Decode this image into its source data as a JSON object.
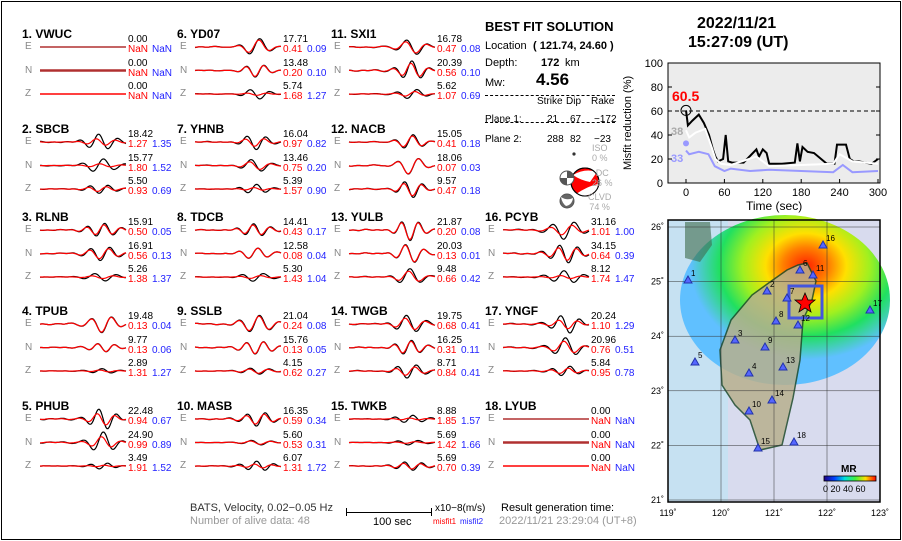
{
  "stations": [
    {
      "label": "1.  VWUC",
      "traces": [
        [
          "0.00",
          "NaN",
          "NaN"
        ],
        [
          "0.00",
          "NaN",
          "NaN"
        ],
        [
          "0.00",
          "NaN",
          "NaN"
        ]
      ],
      "flat": true
    },
    {
      "label": "2.  SBCB",
      "traces": [
        [
          "18.42",
          "1.27",
          "1.35"
        ],
        [
          "15.77",
          "1.80",
          "1.52"
        ],
        [
          "5.50",
          "0.93",
          "0.69"
        ]
      ]
    },
    {
      "label": "3.  RLNB",
      "traces": [
        [
          "15.91",
          "0.50",
          "0.05"
        ],
        [
          "16.91",
          "0.56",
          "0.13"
        ],
        [
          "5.26",
          "1.38",
          "1.37"
        ]
      ]
    },
    {
      "label": "4.  TPUB",
      "traces": [
        [
          "19.48",
          "0.13",
          "0.04"
        ],
        [
          "9.77",
          "0.13",
          "0.06"
        ],
        [
          "2.89",
          "1.31",
          "1.27"
        ]
      ]
    },
    {
      "label": "5.  PHUB",
      "traces": [
        [
          "22.48",
          "0.94",
          "0.67"
        ],
        [
          "24.90",
          "0.99",
          "0.89"
        ],
        [
          "3.49",
          "1.91",
          "1.52"
        ]
      ]
    },
    {
      "label": "6.  YD07",
      "traces": [
        [
          "17.71",
          "0.41",
          "0.09"
        ],
        [
          "13.48",
          "0.20",
          "0.10"
        ],
        [
          "5.74",
          "1.68",
          "1.27"
        ]
      ]
    },
    {
      "label": "7.  YHNB",
      "traces": [
        [
          "16.04",
          "0.97",
          "0.82"
        ],
        [
          "13.46",
          "0.75",
          "0.20"
        ],
        [
          "5.39",
          "1.57",
          "0.90"
        ]
      ]
    },
    {
      "label": "8.  TDCB",
      "traces": [
        [
          "14.41",
          "0.43",
          "0.17"
        ],
        [
          "12.58",
          "0.08",
          "0.04"
        ],
        [
          "5.30",
          "1.43",
          "1.04"
        ]
      ]
    },
    {
      "label": "9.  SSLB",
      "traces": [
        [
          "21.04",
          "0.24",
          "0.08"
        ],
        [
          "15.76",
          "0.13",
          "0.05"
        ],
        [
          "4.15",
          "0.62",
          "0.27"
        ]
      ]
    },
    {
      "label": "10. MASB",
      "traces": [
        [
          "16.35",
          "0.59",
          "0.34"
        ],
        [
          "5.60",
          "0.53",
          "0.31"
        ],
        [
          "6.07",
          "1.31",
          "1.72"
        ]
      ]
    },
    {
      "label": "11. SXI1",
      "traces": [
        [
          "16.78",
          "0.47",
          "0.08"
        ],
        [
          "20.39",
          "0.56",
          "0.10"
        ],
        [
          "5.62",
          "1.07",
          "0.69"
        ]
      ]
    },
    {
      "label": "12. NACB",
      "traces": [
        [
          "15.05",
          "0.41",
          "0.18"
        ],
        [
          "18.06",
          "0.07",
          "0.03"
        ],
        [
          "9.57",
          "0.47",
          "0.18"
        ]
      ]
    },
    {
      "label": "13. YULB",
      "traces": [
        [
          "21.87",
          "0.20",
          "0.08"
        ],
        [
          "20.03",
          "0.13",
          "0.01"
        ],
        [
          "9.48",
          "0.66",
          "0.42"
        ]
      ]
    },
    {
      "label": "14. TWGB",
      "traces": [
        [
          "19.75",
          "0.68",
          "0.41"
        ],
        [
          "16.25",
          "0.31",
          "0.11"
        ],
        [
          "8.71",
          "0.84",
          "0.41"
        ]
      ]
    },
    {
      "label": "15. TWKB",
      "traces": [
        [
          "8.88",
          "1.85",
          "1.57"
        ],
        [
          "5.69",
          "1.42",
          "1.66"
        ],
        [
          "5.69",
          "0.70",
          "0.39"
        ]
      ]
    },
    {
      "label": "16. PCYB",
      "traces": [
        [
          "31.16",
          "1.01",
          "1.00"
        ],
        [
          "34.15",
          "0.64",
          "0.39"
        ],
        [
          "8.12",
          "1.74",
          "1.47"
        ]
      ]
    },
    {
      "label": "17. YNGF",
      "traces": [
        [
          "20.24",
          "1.10",
          "1.29"
        ],
        [
          "20.96",
          "0.76",
          "0.51"
        ],
        [
          "5.84",
          "0.95",
          "0.78"
        ]
      ]
    },
    {
      "label": "18. LYUB",
      "traces": [
        [
          "0.00",
          "NaN",
          "NaN"
        ],
        [
          "0.00",
          "NaN",
          "NaN"
        ],
        [
          "0.00",
          "NaN",
          "NaN"
        ]
      ],
      "flat": true
    }
  ],
  "components": [
    "E",
    "N",
    "Z"
  ],
  "solution": {
    "title": "BEST FIT SOLUTION",
    "location_label": "Location",
    "location_value": "( 121.74,  24.60 )",
    "depth_label": "Depth:",
    "depth_value": "172",
    "depth_unit": "km",
    "mw_label": "Mw:",
    "mw_value": "4.56",
    "headers": [
      "Strike",
      "Dip",
      "Rake"
    ],
    "planes": [
      {
        "label": "Plane 1:",
        "values": [
          "21",
          "67",
          "−172"
        ]
      },
      {
        "label": "Plane 2:",
        "values": [
          "288",
          "82",
          "−23"
        ]
      }
    ],
    "iso_label": "ISO",
    "iso_value": "0  %",
    "dc_label": "DC",
    "dc_value": "26 %",
    "clvd_label": "CLVD",
    "clvd_value": "74 %"
  },
  "header": {
    "date": "2022/11/21",
    "time": "15:27:09  (UT)"
  },
  "chart_data": {
    "type": "line",
    "xlabel": "Time (sec)",
    "ylabel": "Misfit reduction (%)",
    "xlim": [
      -30,
      300
    ],
    "ylim": [
      0,
      100
    ],
    "xticks": [
      "0",
      "60",
      "120",
      "180",
      "240",
      "300"
    ],
    "yticks": [
      "0",
      "20",
      "40",
      "60",
      "80",
      "100"
    ],
    "best_value": "60.5",
    "white_label": "38",
    "blue_label": "33",
    "series": [
      {
        "name": "black",
        "color": "#000000",
        "x": [
          0,
          3,
          10,
          20,
          28,
          36,
          42,
          46,
          50,
          58,
          62,
          66,
          72,
          90,
          110,
          114,
          120,
          126,
          130,
          150,
          170,
          174,
          178,
          182,
          190,
          200,
          220,
          232,
          236,
          250,
          256,
          262,
          270,
          290,
          300
        ],
        "y": [
          60.5,
          48,
          52,
          57,
          50,
          40,
          28,
          22,
          18,
          20,
          40,
          18,
          17,
          17,
          28,
          22,
          28,
          25,
          16,
          16,
          17,
          33,
          18,
          30,
          26,
          25,
          16,
          16,
          32,
          32,
          20,
          18,
          18,
          16,
          20
        ]
      },
      {
        "name": "white",
        "color": "#ffffff",
        "x": [
          0,
          5,
          15,
          30,
          40,
          46,
          55,
          70,
          110,
          130,
          180,
          230,
          240,
          260,
          300
        ],
        "y": [
          44,
          38,
          42,
          45,
          30,
          20,
          16,
          15,
          22,
          14,
          15,
          16,
          24,
          18,
          16
        ]
      },
      {
        "name": "blue",
        "color": "#9999ff",
        "x": [
          0,
          5,
          20,
          35,
          45,
          60,
          70,
          100,
          130,
          180,
          230,
          245,
          260,
          300
        ],
        "y": [
          27,
          24,
          26,
          24,
          14,
          10,
          12,
          10,
          11,
          10,
          9,
          15,
          9,
          10
        ]
      }
    ]
  },
  "map": {
    "lon_ticks": [
      "119˚",
      "120˚",
      "121˚",
      "122˚",
      "123˚"
    ],
    "lat_ticks": [
      "26˚",
      "25˚",
      "24˚",
      "23˚",
      "22˚",
      "21˚"
    ],
    "station_labels": [
      "1",
      "2",
      "3",
      "4",
      "5",
      "6",
      "7",
      "8",
      "9",
      "10",
      "11",
      "12",
      "13",
      "14",
      "15",
      "16",
      "17",
      "18"
    ],
    "colorbar_title": "MR",
    "colorbar_ticks": "0 20 40 60"
  },
  "footer": {
    "data_info": "BATS, Velocity, 0.02−0.05 Hz",
    "alive": "Number of alive data: 48",
    "scale_label": "100 sec",
    "units": "x10−8(m/s)",
    "misfit1": "misfit1",
    "misfit2": "misfit2",
    "gen_label": "Result generation time:",
    "gen_time": "2022/11/21 23:29:04 (UT+8)"
  }
}
